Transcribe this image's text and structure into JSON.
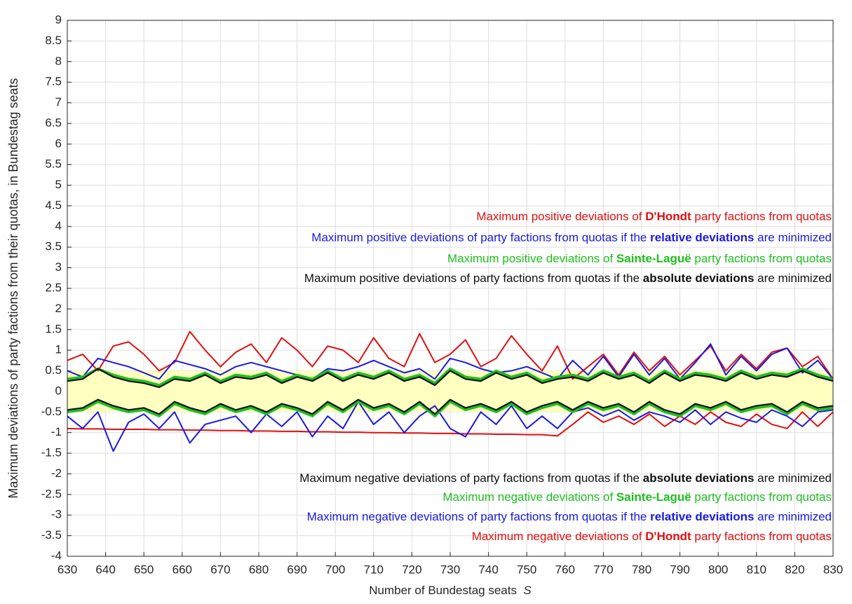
{
  "chart_data": {
    "type": "line",
    "xlabel": [
      "Number of Bundestag seats  ",
      "S"
    ],
    "ylabel": "Maximum deviations of party factions from their quotas, in Bundestag seats",
    "xlim": [
      630,
      830
    ],
    "ylim": [
      -4,
      9
    ],
    "xticks": [
      630,
      640,
      650,
      660,
      670,
      680,
      690,
      700,
      710,
      720,
      730,
      740,
      750,
      760,
      770,
      780,
      790,
      800,
      810,
      820,
      830
    ],
    "yticks": [
      -4,
      -3.5,
      -3,
      -2.5,
      -2,
      -1.5,
      -1,
      -0.5,
      0,
      0.5,
      1,
      1.5,
      2,
      2.5,
      3,
      3.5,
      4,
      4.5,
      5,
      5.5,
      6,
      6.5,
      7,
      7.5,
      8,
      8.5,
      9
    ],
    "grid": true,
    "band": {
      "range": [
        -0.5,
        0.5
      ],
      "color": "#ffffc0"
    },
    "x": [
      630,
      634,
      638,
      642,
      646,
      650,
      654,
      658,
      662,
      666,
      670,
      674,
      678,
      682,
      686,
      690,
      694,
      698,
      702,
      706,
      710,
      714,
      718,
      722,
      726,
      730,
      734,
      738,
      742,
      746,
      750,
      754,
      758,
      762,
      766,
      770,
      774,
      778,
      782,
      786,
      790,
      794,
      798,
      802,
      806,
      810,
      814,
      818,
      822,
      826,
      830
    ],
    "series": [
      {
        "color": "#e01010",
        "width": 2,
        "values": [
          0.75,
          0.9,
          0.5,
          1.1,
          1.2,
          0.9,
          0.5,
          0.7,
          1.45,
          1.0,
          0.6,
          0.95,
          1.15,
          0.7,
          1.3,
          1.0,
          0.6,
          1.1,
          1.0,
          0.7,
          1.3,
          0.8,
          0.6,
          1.4,
          0.7,
          0.9,
          1.25,
          0.6,
          0.8,
          1.35,
          0.9,
          0.5,
          1.1,
          0.3,
          0.6,
          0.9,
          0.4,
          0.95,
          0.5,
          0.85,
          0.4,
          0.75,
          1.1,
          0.5,
          0.9,
          0.55,
          0.95,
          1.05,
          0.6,
          0.85,
          0.3
        ]
      },
      {
        "color": "#e01010",
        "width": 2,
        "values": [
          -0.9,
          -0.91,
          -0.91,
          -0.92,
          -0.92,
          -0.92,
          -0.93,
          -0.93,
          -0.94,
          -0.94,
          -0.95,
          -0.95,
          -0.96,
          -0.96,
          -0.97,
          -0.97,
          -0.98,
          -0.98,
          -0.99,
          -0.99,
          -1.0,
          -1.0,
          -1.01,
          -1.01,
          -1.02,
          -1.02,
          -1.03,
          -1.03,
          -1.04,
          -1.04,
          -1.05,
          -1.05,
          -1.08,
          -0.8,
          -0.5,
          -0.75,
          -0.6,
          -0.8,
          -0.55,
          -0.85,
          -0.6,
          -0.8,
          -0.5,
          -0.75,
          -0.85,
          -0.55,
          -0.8,
          -0.9,
          -0.5,
          -0.85,
          -0.5
        ]
      },
      {
        "color": "#1a1ae0",
        "width": 2,
        "values": [
          0.5,
          0.35,
          0.8,
          0.7,
          0.6,
          0.45,
          0.3,
          0.75,
          0.65,
          0.55,
          0.4,
          0.6,
          0.7,
          0.6,
          0.5,
          0.4,
          0.3,
          0.55,
          0.5,
          0.6,
          0.75,
          0.6,
          0.45,
          0.55,
          0.3,
          0.8,
          0.7,
          0.55,
          0.45,
          0.5,
          0.6,
          0.45,
          0.3,
          0.75,
          0.4,
          0.85,
          0.35,
          0.9,
          0.4,
          0.8,
          0.3,
          0.7,
          1.15,
          0.4,
          0.85,
          0.5,
          0.9,
          1.05,
          0.45,
          0.75,
          0.3
        ]
      },
      {
        "color": "#1a1ae0",
        "width": 2,
        "values": [
          -0.6,
          -0.9,
          -0.5,
          -1.45,
          -0.75,
          -0.55,
          -0.9,
          -0.5,
          -1.25,
          -0.8,
          -0.7,
          -0.6,
          -1.0,
          -0.55,
          -0.85,
          -0.5,
          -1.1,
          -0.6,
          -0.9,
          -0.25,
          -0.8,
          -0.5,
          -1.0,
          -0.6,
          -0.35,
          -0.9,
          -1.1,
          -0.5,
          -0.8,
          -0.35,
          -0.9,
          -0.6,
          -0.9,
          -0.5,
          -0.4,
          -0.6,
          -0.45,
          -0.7,
          -0.5,
          -0.6,
          -0.75,
          -0.45,
          -0.8,
          -0.5,
          -0.65,
          -0.75,
          -0.45,
          -0.6,
          -0.85,
          -0.5,
          -0.45
        ]
      },
      {
        "color": "#1fbf1f",
        "width": 3.5,
        "values": [
          0.3,
          0.35,
          0.55,
          0.4,
          0.3,
          0.25,
          0.15,
          0.35,
          0.3,
          0.45,
          0.25,
          0.4,
          0.35,
          0.45,
          0.25,
          0.4,
          0.3,
          0.5,
          0.3,
          0.45,
          0.35,
          0.5,
          0.3,
          0.4,
          0.2,
          0.55,
          0.35,
          0.3,
          0.5,
          0.35,
          0.45,
          0.25,
          0.35,
          0.4,
          0.3,
          0.5,
          0.35,
          0.45,
          0.25,
          0.5,
          0.3,
          0.45,
          0.4,
          0.3,
          0.5,
          0.35,
          0.45,
          0.4,
          0.55,
          0.4,
          0.3
        ]
      },
      {
        "color": "#1fbf1f",
        "width": 3.5,
        "values": [
          -0.5,
          -0.45,
          -0.25,
          -0.4,
          -0.5,
          -0.45,
          -0.6,
          -0.3,
          -0.45,
          -0.55,
          -0.35,
          -0.5,
          -0.4,
          -0.55,
          -0.35,
          -0.45,
          -0.6,
          -0.3,
          -0.5,
          -0.25,
          -0.45,
          -0.35,
          -0.55,
          -0.3,
          -0.6,
          -0.25,
          -0.45,
          -0.35,
          -0.5,
          -0.3,
          -0.55,
          -0.4,
          -0.3,
          -0.5,
          -0.3,
          -0.45,
          -0.35,
          -0.55,
          -0.3,
          -0.5,
          -0.6,
          -0.35,
          -0.45,
          -0.3,
          -0.5,
          -0.4,
          -0.35,
          -0.55,
          -0.3,
          -0.45,
          -0.4
        ]
      },
      {
        "color": "#111111",
        "width": 2.2,
        "values": [
          0.25,
          0.3,
          0.55,
          0.35,
          0.25,
          0.2,
          0.1,
          0.3,
          0.25,
          0.4,
          0.2,
          0.35,
          0.3,
          0.4,
          0.2,
          0.35,
          0.25,
          0.45,
          0.25,
          0.4,
          0.3,
          0.45,
          0.25,
          0.35,
          0.15,
          0.5,
          0.3,
          0.25,
          0.45,
          0.3,
          0.4,
          0.2,
          0.3,
          0.35,
          0.25,
          0.45,
          0.3,
          0.4,
          0.2,
          0.45,
          0.25,
          0.4,
          0.35,
          0.25,
          0.45,
          0.3,
          0.4,
          0.35,
          0.5,
          0.35,
          0.25
        ]
      },
      {
        "color": "#111111",
        "width": 2.2,
        "values": [
          -0.45,
          -0.4,
          -0.2,
          -0.35,
          -0.45,
          -0.4,
          -0.55,
          -0.25,
          -0.4,
          -0.5,
          -0.3,
          -0.45,
          -0.35,
          -0.5,
          -0.3,
          -0.4,
          -0.55,
          -0.25,
          -0.45,
          -0.2,
          -0.4,
          -0.3,
          -0.5,
          -0.25,
          -0.55,
          -0.2,
          -0.4,
          -0.3,
          -0.45,
          -0.25,
          -0.5,
          -0.35,
          -0.25,
          -0.45,
          -0.25,
          -0.4,
          -0.3,
          -0.5,
          -0.25,
          -0.45,
          -0.55,
          -0.3,
          -0.4,
          -0.25,
          -0.45,
          -0.35,
          -0.3,
          -0.5,
          -0.25,
          -0.4,
          -0.35
        ]
      }
    ],
    "annotations": [
      {
        "color": "#e01010",
        "bold": 1,
        "parts": [
          "Maximum positive deviations of ",
          "D'Hondt",
          " party factions from quotas"
        ]
      },
      {
        "color": "#1a1ae0",
        "bold": 1,
        "parts": [
          "Maximum positive deviations of party factions from quotas if the ",
          "relative deviations",
          " are minimized"
        ]
      },
      {
        "color": "#1fbf1f",
        "bold": 1,
        "parts": [
          "Maximum positive deviations of ",
          "Sainte-Laguë",
          " party factions from quotas"
        ]
      },
      {
        "color": "#111111",
        "bold": 1,
        "parts": [
          "Maximum positive deviations of party factions from quotas if the ",
          "absolute deviations",
          " are minimized"
        ]
      },
      {
        "color": "#111111",
        "bold": 1,
        "parts": [
          "Maximum negative deviations of party factions from quotas if the ",
          "absolute deviations",
          " are minimized"
        ]
      },
      {
        "color": "#1fbf1f",
        "bold": 1,
        "parts": [
          "Maximum negative deviations of ",
          "Sainte-Laguë",
          " party factions from quotas"
        ]
      },
      {
        "color": "#1a1ae0",
        "bold": 1,
        "parts": [
          "Maximum negative deviations of party factions from quotas if the ",
          "relative deviations",
          " are minimized"
        ]
      },
      {
        "color": "#e01010",
        "bold": 1,
        "parts": [
          "Maximum negative deviations of ",
          "D'Hondt",
          " party factions from quotas"
        ]
      }
    ]
  }
}
